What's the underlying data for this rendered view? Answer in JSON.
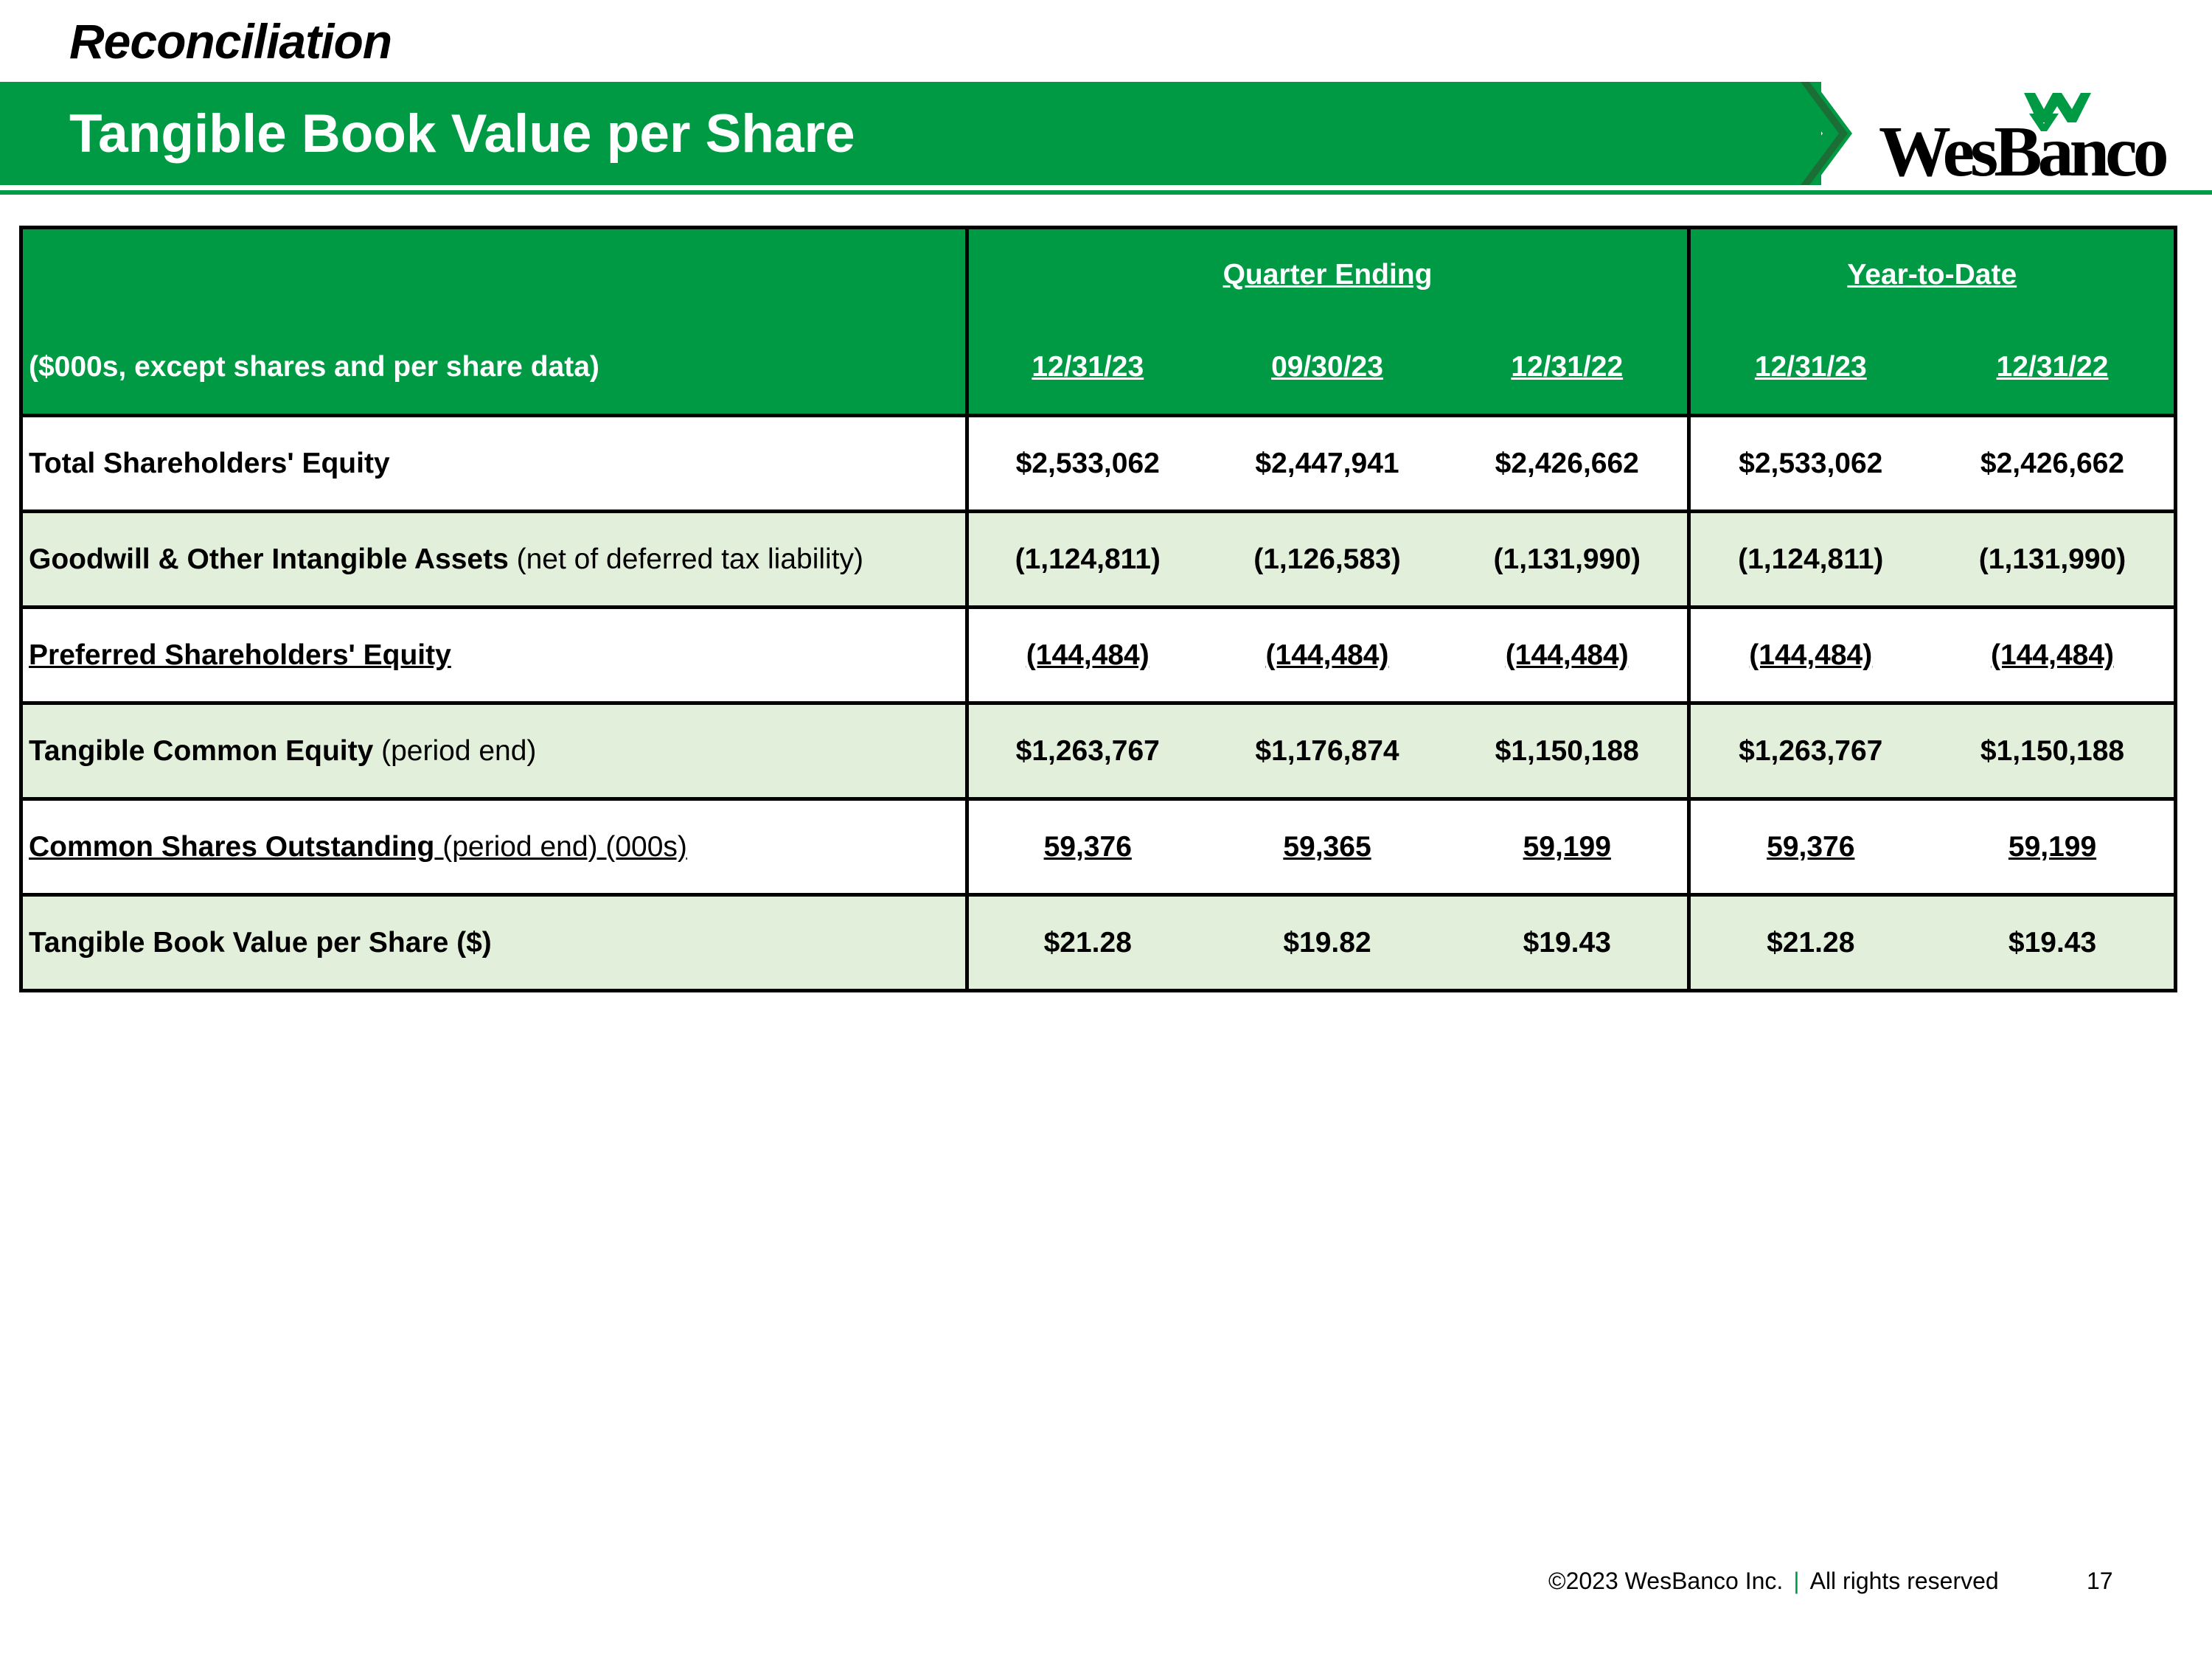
{
  "kicker": "Reconciliation",
  "title": "Tangible Book Value per Share",
  "logo": {
    "text": "WesBanco",
    "icon": "wesbanco-w-logo-icon",
    "brand_color": "#009a44"
  },
  "table": {
    "group_headers": {
      "quarter": "Quarter Ending",
      "ytd": "Year-to-Date"
    },
    "units_label": "($000s, except shares and per share data)",
    "columns": [
      "12/31/23",
      "09/30/23",
      "12/31/22",
      "12/31/23",
      "12/31/22"
    ],
    "rows": [
      {
        "label_bold": "Total Shareholders' Equity",
        "label_rest": "",
        "values": [
          "$2,533,062",
          "$2,447,941",
          "$2,426,662",
          "$2,533,062",
          "$2,426,662"
        ]
      },
      {
        "label_bold": "Goodwill & Other Intangible Assets",
        "label_rest": " (net of deferred tax liability)",
        "values": [
          "(1,124,811)",
          "(1,126,583)",
          "(1,131,990)",
          "(1,124,811)",
          "(1,131,990)"
        ]
      },
      {
        "label_bold": "Preferred Shareholders' Equity",
        "label_rest": "",
        "values": [
          "(144,484)",
          "(144,484)",
          "(144,484)",
          "(144,484)",
          "(144,484)"
        ]
      },
      {
        "label_bold": "Tangible Common Equity",
        "label_rest": " (period end)",
        "values": [
          "$1,263,767",
          "$1,176,874",
          "$1,150,188",
          "$1,263,767",
          "$1,150,188"
        ]
      },
      {
        "label_bold": "Common Shares Outstanding",
        "label_rest": " (period end) (000s)",
        "values": [
          "59,376",
          "59,365",
          "59,199",
          "59,376",
          "59,199"
        ]
      },
      {
        "label_bold": "Tangible Book Value per Share ($)",
        "label_rest": "",
        "values": [
          "$21.28",
          "$19.82",
          "$19.43",
          "$21.28",
          "$19.43"
        ]
      }
    ]
  },
  "footer": {
    "copyright": "©2023 WesBanco Inc.",
    "separator": "|",
    "rights": "All rights reserved",
    "page": "17"
  }
}
